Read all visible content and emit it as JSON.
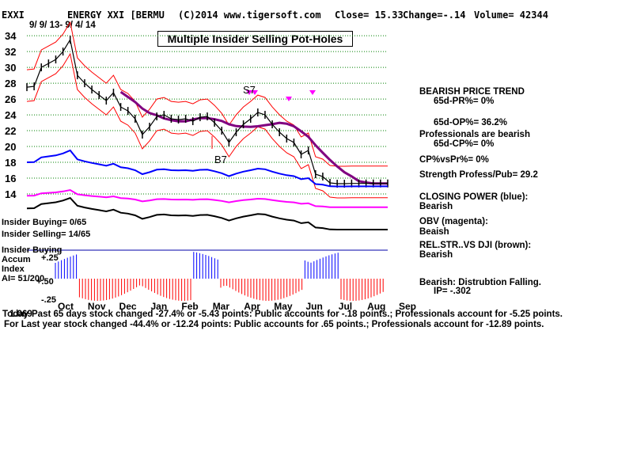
{
  "header": {
    "ticker": "EXXI",
    "company": "ENERGY XXI [BERMU",
    "copyright": "(C)2014 www.tigersoft.com",
    "close": "Close=  15.33",
    "change": "Change=-.14",
    "volume": "Volume= 42344",
    "date_range": "9/ 9/ 13-  9/ 4/ 14"
  },
  "annotation_box": "Multiple Insider Selling Pot-Holes",
  "signals": {
    "s7": "S7",
    "b7": "B7"
  },
  "insider": {
    "buying": "Insider Buying= 0/65",
    "selling": "Insider Selling= 14/65",
    "accum_l1": "Insider Buying",
    "accum_l2": "Accum",
    "accum_l3": "Index",
    "ai": "AI= 51/200",
    "tick_p25": "+.25",
    "tick_p50": "+.50",
    "tick_m25": "-.25"
  },
  "side_notes": [
    {
      "text": "BEARISH PRICE TREND",
      "indent": false
    },
    {
      "text": "65d-PR%= 0%",
      "indent": true
    },
    {
      "text": "65d-OP%= 36.2%",
      "indent": true
    },
    {
      "text": "Professionals are bearish",
      "indent": false
    },
    {
      "text": "65d-CP%= 0%",
      "indent": true
    },
    {
      "text": "CP%vsPr%=  0%",
      "indent": false
    },
    {
      "text": "Strength Profess/Pub= 29.2",
      "indent": false
    },
    {
      "text": "CLOSING POWER (blue):",
      "indent": false
    },
    {
      "text": "Bearish",
      "indent": false
    },
    {
      "text": "OBV (magenta):",
      "indent": false
    },
    {
      "text": "Beaish",
      "indent": false
    },
    {
      "text": "REL.STR..VS DJI (brown):",
      "indent": false
    },
    {
      "text": "Bearish",
      "indent": false
    },
    {
      "text": "Bearish: Distrubtion Falling.",
      "indent": false
    },
    {
      "text": "IP= -.302",
      "indent": true
    }
  ],
  "footer": {
    "line1_prefix": "Today",
    "line1": "Past 65 days stock changed -27.4% or -5.43 points:  Public accounts for -.18 points.;  Professionals account for -5.25 points.",
    "line2": "For Last year stock changed -44.4% or -12.24 points:  Public accounts for  .65 points.;  Professionals account for -12.89 points.",
    "overlay": "1.069"
  },
  "colors": {
    "price": "#000000",
    "bands": "#ff0000",
    "ma": "#800080",
    "closing_power": "#0000ff",
    "obv": "#ff00ff",
    "relstr": "#000000",
    "accum_pos": "#0000ff",
    "accum_neg": "#ff0000",
    "grid": "#008000"
  },
  "chart_data": {
    "type": "line",
    "title": "ENERGY XXI [BERMU",
    "x_tick_labels": [
      "Oct",
      "Nov",
      "Dec",
      "Jan",
      "Feb",
      "Mar",
      "Apr",
      "May",
      "Jun",
      "Jul",
      "Aug",
      "Sep"
    ],
    "y_tick_labels": [
      34,
      32,
      30,
      28,
      26,
      24,
      22,
      20,
      18,
      16,
      14
    ],
    "ylim": [
      12.5,
      35
    ],
    "grid": true,
    "series": [
      {
        "name": "",
        "role": "price",
        "x": [
          0,
          2,
          4,
          6,
          8,
          10,
          12,
          14,
          16,
          18,
          20,
          22,
          24,
          26,
          28,
          30,
          32,
          34,
          36,
          38,
          40,
          42,
          44,
          46,
          48,
          50,
          52,
          54,
          56,
          58,
          60,
          62,
          64,
          66,
          68,
          70,
          72,
          74,
          76,
          78,
          80,
          82,
          84,
          86,
          88,
          90,
          92,
          94,
          96,
          98,
          100
        ],
        "values": [
          27.5,
          27.6,
          30,
          30.5,
          31,
          32,
          33.5,
          29,
          28,
          27.2,
          26.5,
          25.8,
          26.8,
          25,
          24.5,
          23.5,
          21.5,
          22.5,
          23.8,
          24,
          23.5,
          23.4,
          23.5,
          23.2,
          23.7,
          23.8,
          23,
          22,
          20.5,
          21.8,
          22.8,
          23.5,
          24.3,
          24,
          22.8,
          21.8,
          21,
          20.5,
          19,
          19.5,
          16.5,
          16.2,
          15.4,
          15.3,
          15.3,
          15.33,
          15.33,
          15.33,
          15.33,
          15.33,
          15.33
        ]
      }
    ],
    "accum_index_range": [
      -0.25,
      0.5
    ]
  }
}
